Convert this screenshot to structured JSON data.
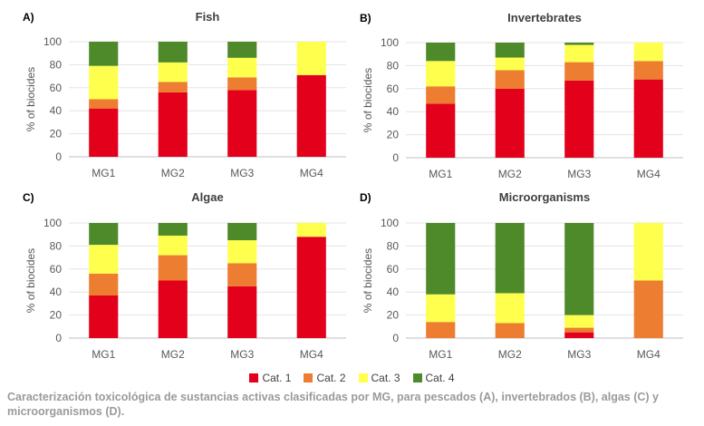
{
  "chart_data": [
    {
      "type": "bar",
      "stacked": true,
      "panel_label": "A)",
      "title": "Fish",
      "ylabel": "% of biocides",
      "ylim": [
        0,
        100
      ],
      "yticks": [
        0,
        20,
        40,
        60,
        80,
        100
      ],
      "categories": [
        "MG1",
        "MG2",
        "MG3",
        "MG4"
      ],
      "series": [
        {
          "name": "Cat. 1",
          "values": [
            42,
            56,
            58,
            71
          ]
        },
        {
          "name": "Cat. 2",
          "values": [
            8,
            9,
            11,
            0
          ]
        },
        {
          "name": "Cat. 3",
          "values": [
            29,
            17,
            17,
            29
          ]
        },
        {
          "name": "Cat. 4",
          "values": [
            21,
            18,
            14,
            0
          ]
        }
      ]
    },
    {
      "type": "bar",
      "stacked": true,
      "panel_label": "B)",
      "title": "Invertebrates",
      "ylabel": "% of biocides",
      "ylim": [
        0,
        100
      ],
      "yticks": [
        0,
        20,
        40,
        60,
        80,
        100
      ],
      "categories": [
        "MG1",
        "MG2",
        "MG3",
        "MG4"
      ],
      "series": [
        {
          "name": "Cat. 1",
          "values": [
            47,
            60,
            67,
            68
          ]
        },
        {
          "name": "Cat. 2",
          "values": [
            15,
            16,
            16,
            16
          ]
        },
        {
          "name": "Cat. 3",
          "values": [
            22,
            11,
            15,
            16
          ]
        },
        {
          "name": "Cat. 4",
          "values": [
            16,
            13,
            2,
            0
          ]
        }
      ]
    },
    {
      "type": "bar",
      "stacked": true,
      "panel_label": "C)",
      "title": "Algae",
      "ylabel": "% of biocides",
      "ylim": [
        0,
        100
      ],
      "yticks": [
        0,
        20,
        40,
        60,
        80,
        100
      ],
      "categories": [
        "MG1",
        "MG2",
        "MG3",
        "MG4"
      ],
      "series": [
        {
          "name": "Cat. 1",
          "values": [
            37,
            50,
            45,
            88
          ]
        },
        {
          "name": "Cat. 2",
          "values": [
            19,
            22,
            20,
            0
          ]
        },
        {
          "name": "Cat. 3",
          "values": [
            25,
            17,
            20,
            12
          ]
        },
        {
          "name": "Cat. 4",
          "values": [
            19,
            11,
            15,
            0
          ]
        }
      ]
    },
    {
      "type": "bar",
      "stacked": true,
      "panel_label": "D)",
      "title": "Microorganisms",
      "ylabel": "% of biocides",
      "ylim": [
        0,
        100
      ],
      "yticks": [
        0,
        20,
        40,
        60,
        80,
        100
      ],
      "categories": [
        "MG1",
        "MG2",
        "MG3",
        "MG4"
      ],
      "series": [
        {
          "name": "Cat. 1",
          "values": [
            0,
            0,
            5,
            0
          ]
        },
        {
          "name": "Cat. 2",
          "values": [
            14,
            13,
            4,
            50
          ]
        },
        {
          "name": "Cat. 3",
          "values": [
            24,
            26,
            11,
            50
          ]
        },
        {
          "name": "Cat. 4",
          "values": [
            62,
            61,
            80,
            0
          ]
        }
      ]
    }
  ],
  "legend": {
    "placement": "bottom-center",
    "items": [
      {
        "label": "Cat. 1",
        "color": "#e3001b"
      },
      {
        "label": "Cat. 2",
        "color": "#ed7d31"
      },
      {
        "label": "Cat. 3",
        "color": "#ffff4d"
      },
      {
        "label": "Cat. 4",
        "color": "#4f8a2a"
      }
    ]
  },
  "caption": "Caracterización toxicológica de sustancias activas clasificadas por MG, para pescados (A), invertebrados (B), algas (C) y microorganismos (D)."
}
